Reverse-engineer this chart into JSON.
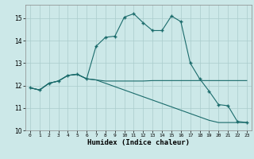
{
  "xlabel": "Humidex (Indice chaleur)",
  "background_color": "#cce8e8",
  "grid_color": "#aacccc",
  "line_color": "#1a6b6b",
  "xlim": [
    -0.5,
    23.5
  ],
  "ylim": [
    10.0,
    15.6
  ],
  "yticks": [
    10,
    11,
    12,
    13,
    14,
    15
  ],
  "xticks": [
    0,
    1,
    2,
    3,
    4,
    5,
    6,
    7,
    8,
    9,
    10,
    11,
    12,
    13,
    14,
    15,
    16,
    17,
    18,
    19,
    20,
    21,
    22,
    23
  ],
  "curve1_x": [
    0,
    1,
    2,
    3,
    4,
    5,
    6,
    7,
    8,
    9,
    10,
    11,
    12,
    13,
    14,
    15,
    16,
    17,
    18,
    19,
    20,
    21,
    22,
    23
  ],
  "curve1_y": [
    11.9,
    11.8,
    12.1,
    12.2,
    12.45,
    12.5,
    12.3,
    13.75,
    14.15,
    14.2,
    15.05,
    15.2,
    14.8,
    14.45,
    14.45,
    15.1,
    14.85,
    13.0,
    12.3,
    11.75,
    11.15,
    11.1,
    10.4,
    10.35
  ],
  "curve2_x": [
    0,
    1,
    2,
    3,
    4,
    5,
    6,
    7,
    8,
    9,
    10,
    11,
    12,
    13,
    14,
    15,
    16,
    17,
    18,
    19,
    20,
    21,
    22,
    23
  ],
  "curve2_y": [
    11.9,
    11.8,
    12.1,
    12.2,
    12.45,
    12.5,
    12.3,
    12.25,
    12.2,
    12.2,
    12.2,
    12.2,
    12.2,
    12.22,
    12.22,
    12.22,
    12.22,
    12.22,
    12.22,
    12.22,
    12.22,
    12.22,
    12.22,
    12.22
  ],
  "curve3_x": [
    0,
    1,
    2,
    3,
    4,
    5,
    6,
    7,
    8,
    9,
    10,
    11,
    12,
    13,
    14,
    15,
    16,
    17,
    18,
    19,
    20,
    21,
    22,
    23
  ],
  "curve3_y": [
    11.9,
    11.8,
    12.1,
    12.2,
    12.45,
    12.5,
    12.3,
    12.25,
    12.1,
    11.95,
    11.8,
    11.65,
    11.5,
    11.35,
    11.2,
    11.05,
    10.9,
    10.75,
    10.6,
    10.45,
    10.35,
    10.35,
    10.35,
    10.35
  ]
}
